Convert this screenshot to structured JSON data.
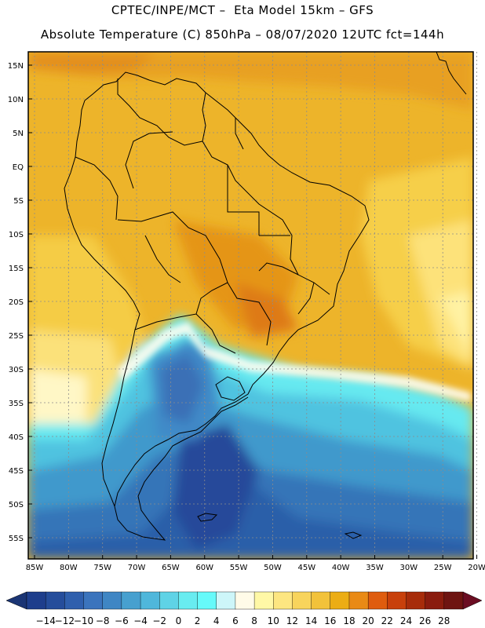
{
  "header": {
    "line1": "CPTEC/INPE/MCT –  Eta Model 15km – GFS",
    "line2": "Absolute Temperature (C) 850hPa – 08/07/2020 12UTC fct=144h"
  },
  "map": {
    "lat_labels": [
      "15N",
      "10N",
      "5N",
      "EQ",
      "5S",
      "10S",
      "15S",
      "20S",
      "25S",
      "30S",
      "35S",
      "40S",
      "45S",
      "50S",
      "55S"
    ],
    "lon_labels": [
      "85W",
      "80W",
      "75W",
      "70W",
      "65W",
      "60W",
      "55W",
      "50W",
      "45W",
      "40W",
      "35W",
      "30W",
      "25W",
      "20W"
    ]
  },
  "colorbar": {
    "labels": [
      "-14",
      "-12",
      "-10",
      "-8",
      "-6",
      "-4",
      "-2",
      "0",
      "2",
      "4",
      "6",
      "8",
      "10",
      "12",
      "14",
      "16",
      "18",
      "20",
      "22",
      "24",
      "26",
      "28"
    ],
    "colors": [
      "#1e3e8c",
      "#254d9b",
      "#2f5fad",
      "#3b74bd",
      "#3f86c4",
      "#47a0cf",
      "#4fb7db",
      "#5fd3e6",
      "#68ecf0",
      "#66fafa",
      "#cdf6f9",
      "#fffbe8",
      "#fff8a6",
      "#fde681",
      "#f8d45c",
      "#f2c23a",
      "#ecad14",
      "#e98a15",
      "#df5c0e",
      "#c8400b",
      "#a72c0a",
      "#8a1c0e",
      "#6e1411"
    ],
    "arrow_left_color": "#1b3574",
    "arrow_right_color": "#6b0d22"
  }
}
